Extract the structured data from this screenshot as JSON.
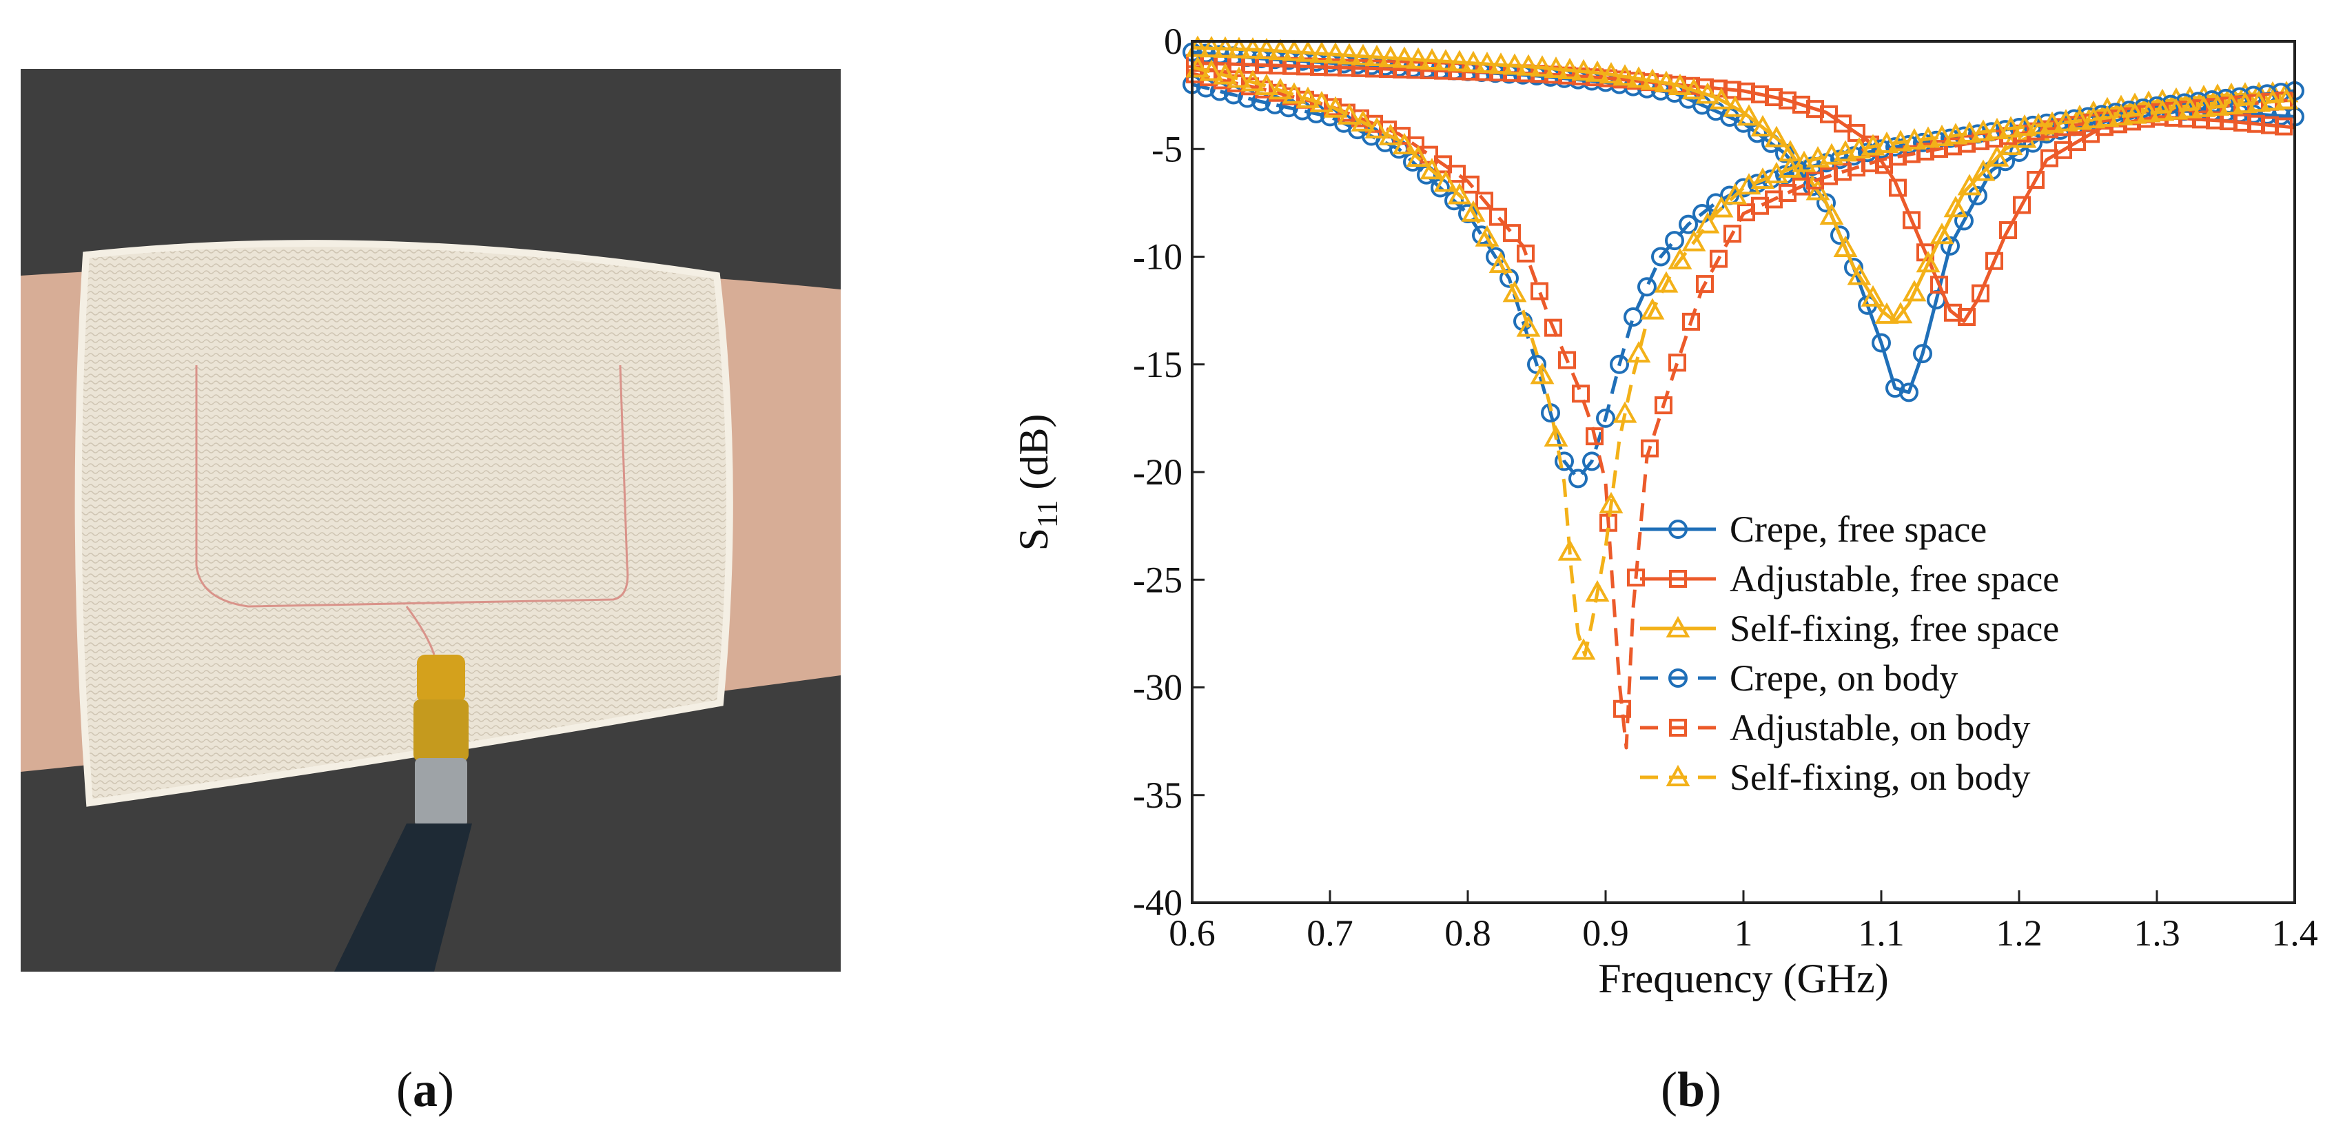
{
  "panels": {
    "a": {
      "label_open": "(",
      "label_letter": "a",
      "label_close": ")"
    },
    "b": {
      "label_open": "(",
      "label_letter": "b",
      "label_close": ")"
    }
  },
  "colors": {
    "crepe": "#1f6fb8",
    "adjustable": "#ec5a2a",
    "selffixing": "#f3b118",
    "background_photo": "#3a3a3a",
    "fabric": "#e9e2d3"
  },
  "chart_data": {
    "type": "line",
    "title": "",
    "xlabel": "Frequency (GHz)",
    "ylabel_main": "S",
    "ylabel_sub": "11",
    "ylabel_unit": " (dB)",
    "xlim": [
      0.6,
      1.4
    ],
    "ylim": [
      -40,
      0
    ],
    "xticks": [
      0.6,
      0.7,
      0.8,
      0.9,
      1,
      1.1,
      1.2,
      1.3,
      1.4
    ],
    "xtick_labels": [
      "0.6",
      "0.7",
      "0.8",
      "0.9",
      "1",
      "1.1",
      "1.2",
      "1.3",
      "1.4"
    ],
    "yticks": [
      0,
      -5,
      -10,
      -15,
      -20,
      -25,
      -30,
      -35,
      -40
    ],
    "ytick_labels": [
      "0",
      "-5",
      "-10",
      "-15",
      "-20",
      "-25",
      "-30",
      "-35",
      "-40"
    ],
    "legend_position": "bottom-right",
    "series": [
      {
        "name": "Crepe, free space",
        "color_key": "crepe",
        "marker": "circle",
        "dash": "solid",
        "x": [
          0.6,
          0.65,
          0.7,
          0.75,
          0.8,
          0.85,
          0.9,
          0.95,
          1.0,
          1.03,
          1.06,
          1.08,
          1.1,
          1.11,
          1.12,
          1.13,
          1.15,
          1.18,
          1.22,
          1.26,
          1.3,
          1.35,
          1.4
        ],
        "y": [
          -0.5,
          -0.8,
          -1.0,
          -1.2,
          -1.4,
          -1.6,
          -1.9,
          -2.4,
          -3.8,
          -5.2,
          -7.5,
          -10.5,
          -14.0,
          -16.1,
          -16.3,
          -14.5,
          -9.5,
          -6.0,
          -4.3,
          -3.6,
          -3.2,
          -3.3,
          -3.5
        ]
      },
      {
        "name": "Adjustable, free space",
        "color_key": "adjustable",
        "marker": "square",
        "dash": "solid",
        "x": [
          0.6,
          0.65,
          0.7,
          0.75,
          0.8,
          0.85,
          0.9,
          0.95,
          1.0,
          1.03,
          1.06,
          1.09,
          1.11,
          1.13,
          1.15,
          1.16,
          1.17,
          1.19,
          1.22,
          1.26,
          1.3,
          1.35,
          1.4
        ],
        "y": [
          -1.0,
          -1.1,
          -1.2,
          -1.3,
          -1.4,
          -1.5,
          -1.7,
          -2.0,
          -2.3,
          -2.7,
          -3.3,
          -4.6,
          -6.5,
          -9.5,
          -12.5,
          -13.0,
          -12.0,
          -9.0,
          -5.5,
          -4.0,
          -3.5,
          -3.7,
          -4.0
        ]
      },
      {
        "name": "Self-fixing, free space",
        "color_key": "selffixing",
        "marker": "triangle",
        "dash": "solid",
        "x": [
          0.6,
          0.65,
          0.7,
          0.75,
          0.8,
          0.85,
          0.9,
          0.95,
          0.98,
          1.0,
          1.03,
          1.06,
          1.08,
          1.1,
          1.11,
          1.12,
          1.14,
          1.16,
          1.19,
          1.22,
          1.26,
          1.3,
          1.35,
          1.4
        ],
        "y": [
          -0.3,
          -0.4,
          -0.6,
          -0.8,
          -1.0,
          -1.2,
          -1.5,
          -2.0,
          -2.6,
          -3.3,
          -4.8,
          -7.5,
          -10.5,
          -12.5,
          -13.0,
          -12.2,
          -9.5,
          -7.0,
          -5.0,
          -4.0,
          -3.2,
          -2.8,
          -2.5,
          -2.4
        ]
      },
      {
        "name": "Crepe, on body",
        "color_key": "crepe",
        "marker": "circle",
        "dash": "dashed",
        "x": [
          0.6,
          0.65,
          0.7,
          0.75,
          0.8,
          0.83,
          0.85,
          0.87,
          0.88,
          0.89,
          0.9,
          0.91,
          0.92,
          0.94,
          0.96,
          0.98,
          1.0,
          1.05,
          1.1,
          1.2,
          1.3,
          1.4
        ],
        "y": [
          -2.0,
          -2.8,
          -3.5,
          -5.0,
          -8.0,
          -11.0,
          -15.0,
          -19.5,
          -20.3,
          -19.5,
          -17.5,
          -15.0,
          -12.8,
          -10.0,
          -8.5,
          -7.5,
          -6.8,
          -5.8,
          -5.0,
          -4.0,
          -3.0,
          -2.3
        ]
      },
      {
        "name": "Adjustable, on body",
        "color_key": "adjustable",
        "marker": "square",
        "dash": "dashed",
        "x": [
          0.6,
          0.65,
          0.7,
          0.75,
          0.8,
          0.84,
          0.86,
          0.88,
          0.89,
          0.9,
          0.91,
          0.915,
          0.92,
          0.93,
          0.95,
          0.97,
          1.0,
          1.05,
          1.1,
          1.2,
          1.3,
          1.4
        ],
        "y": [
          -1.5,
          -2.2,
          -3.0,
          -4.3,
          -6.5,
          -9.5,
          -13.0,
          -16.0,
          -17.8,
          -20.5,
          -29.8,
          -32.8,
          -26.3,
          -19.3,
          -15.3,
          -11.5,
          -8.0,
          -6.5,
          -5.5,
          -4.3,
          -3.3,
          -2.7
        ]
      },
      {
        "name": "Self-fixing, on body",
        "color_key": "selffixing",
        "marker": "triangle",
        "dash": "dashed",
        "x": [
          0.6,
          0.65,
          0.7,
          0.75,
          0.8,
          0.82,
          0.84,
          0.85,
          0.86,
          0.87,
          0.875,
          0.88,
          0.885,
          0.89,
          0.9,
          0.91,
          0.92,
          0.93,
          0.95,
          0.98,
          1.0,
          1.05,
          1.1,
          1.2,
          1.3,
          1.4
        ],
        "y": [
          -1.2,
          -2.0,
          -3.0,
          -4.6,
          -7.5,
          -9.8,
          -12.5,
          -14.5,
          -17.0,
          -20.5,
          -24.5,
          -27.5,
          -28.5,
          -27.0,
          -23.5,
          -18.5,
          -15.5,
          -13.0,
          -10.5,
          -8.0,
          -6.8,
          -5.5,
          -4.8,
          -4.0,
          -3.3,
          -2.7
        ]
      }
    ]
  }
}
